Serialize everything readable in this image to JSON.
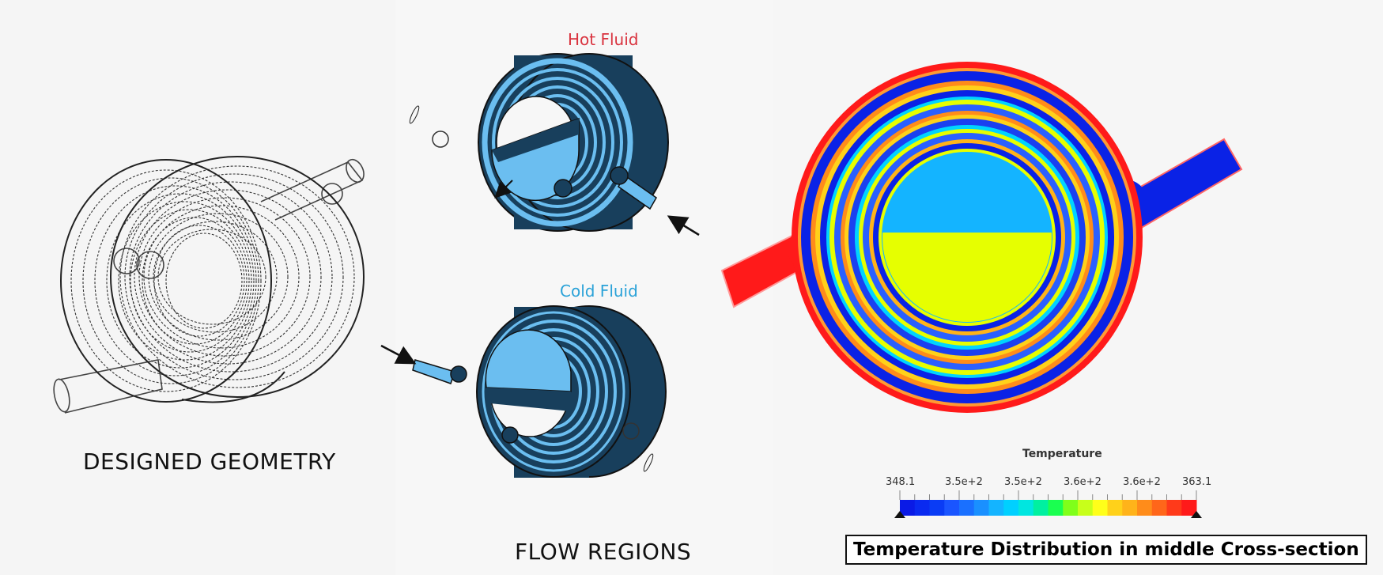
{
  "left": {
    "caption": "DESIGNED GEOMETRY"
  },
  "middle": {
    "hot_label": "Hot Fluid",
    "cold_label": "Cold Fluid",
    "caption": "FLOW REGIONS"
  },
  "right": {
    "legend": {
      "title": "Temperature",
      "ticks": [
        "348.1",
        "3.5e+2",
        "3.5e+2",
        "3.6e+2",
        "3.6e+2",
        "363.1"
      ],
      "min": 348.1,
      "max": 363.1
    },
    "caption": "Temperature Distribution in middle Cross-section"
  },
  "colors": {
    "hot_label": "#d9333f",
    "cold_label": "#2aa2d8",
    "solid_dark": "#183f5c",
    "fluid_light": "#6bbef0",
    "hot_red": "#ff1a1a",
    "cold_blue": "#0a22e6",
    "mid_yellow": "#e6ff00",
    "inner_cyan": "#14b4ff"
  }
}
